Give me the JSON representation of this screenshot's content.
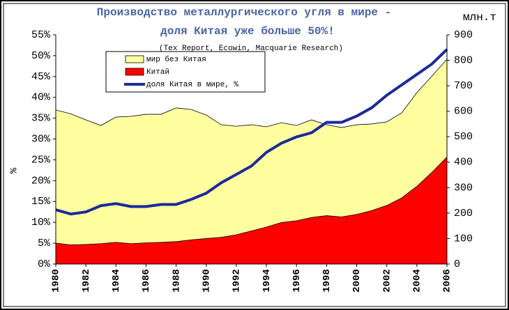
{
  "chart_data": {
    "type": "area",
    "title": "Производство металлургического угля в мире -",
    "subtitle": "доля Китая уже больше 50%!",
    "source": "(Tex Report, Ecowin, Macquarie Research)",
    "y_label": "%",
    "y2_label": "млн.т",
    "x": [
      1980,
      1981,
      1982,
      1983,
      1984,
      1985,
      1986,
      1987,
      1988,
      1989,
      1990,
      1991,
      1992,
      1993,
      1994,
      1995,
      1996,
      1997,
      1998,
      1999,
      2000,
      2001,
      2002,
      2003,
      2004,
      2005,
      2006
    ],
    "xlim": [
      1980,
      2006
    ],
    "xticks": [
      1980,
      1982,
      1984,
      1986,
      1988,
      1990,
      1992,
      1994,
      1996,
      1998,
      2000,
      2002,
      2004,
      2006
    ],
    "ylim": [
      0,
      55
    ],
    "yticks": [
      {
        "value": 0,
        "label": "0%"
      },
      {
        "value": 5,
        "label": "5%"
      },
      {
        "value": 10,
        "label": "10%"
      },
      {
        "value": 15,
        "label": "15%"
      },
      {
        "value": 20,
        "label": "20%"
      },
      {
        "value": 25,
        "label": "25%"
      },
      {
        "value": 30,
        "label": "30%"
      },
      {
        "value": 35,
        "label": "35%"
      },
      {
        "value": 40,
        "label": "40%"
      },
      {
        "value": 45,
        "label": "45%"
      },
      {
        "value": 50,
        "label": "50%"
      },
      {
        "value": 55,
        "label": "55%"
      }
    ],
    "y2lim": [
      0,
      900
    ],
    "y2ticks": [
      0,
      100,
      200,
      300,
      400,
      500,
      600,
      700,
      800,
      900
    ],
    "series": [
      {
        "name": "Китай",
        "type": "area",
        "axis": "y2",
        "color": "#ff0000",
        "values": [
          82,
          75,
          77,
          80,
          85,
          80,
          83,
          85,
          88,
          95,
          100,
          105,
          115,
          130,
          145,
          163,
          170,
          183,
          190,
          185,
          195,
          210,
          230,
          260,
          305,
          360,
          420
        ]
      },
      {
        "name": "мир без Китая",
        "type": "area",
        "axis": "y2",
        "color": "#ffffa0",
        "values": [
          523,
          515,
          489,
          464,
          492,
          500,
          505,
          503,
          525,
          512,
          485,
          442,
          426,
          417,
          394,
          392,
          374,
          383,
          357,
          351,
          352,
          340,
          328,
          334,
          368,
          378,
          384
        ]
      },
      {
        "name": "доля Китая в мире, %",
        "type": "line",
        "axis": "y",
        "color": "#1c2a9a",
        "values": [
          13,
          12,
          12.5,
          14,
          14.5,
          13.8,
          13.8,
          14.3,
          14.3,
          15.5,
          17,
          19.5,
          21.5,
          23.5,
          26.8,
          29,
          30.5,
          31.5,
          34,
          34,
          35.5,
          37.5,
          40.5,
          43,
          45.5,
          48,
          51.5
        ]
      }
    ],
    "legend_order": [
      1,
      0,
      2
    ]
  }
}
